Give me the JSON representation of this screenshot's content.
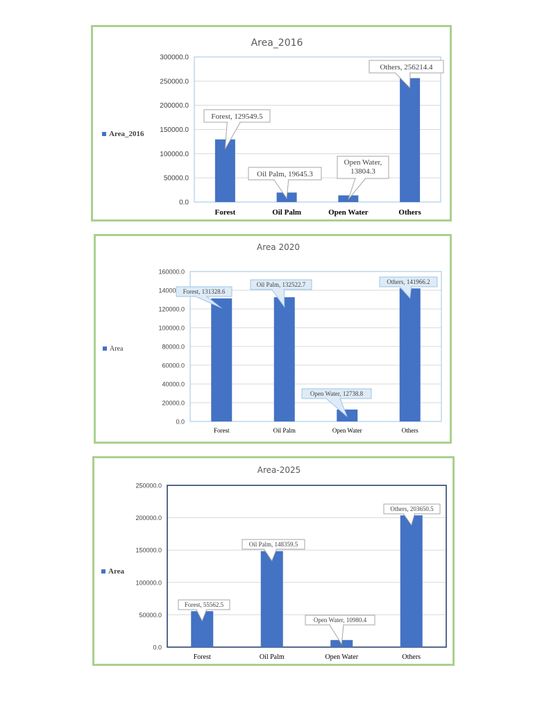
{
  "colors": {
    "bar": "#4472c4",
    "panel_border": "#a9d18e",
    "grid": "#d9d9d9"
  },
  "chart_data": [
    {
      "type": "bar",
      "title": "Area_2016",
      "legend": "Area_2016",
      "legend_position": "left",
      "categories": [
        "Forest",
        "Oil Palm",
        "Open Water",
        "Others"
      ],
      "values": [
        129549.5,
        19645.3,
        13804.3,
        256214.4
      ],
      "data_labels": [
        "Forest, 129549.5",
        "Oil Palm, 19645.3",
        "Open Water,",
        "Others, 256214.4"
      ],
      "data_labels_line2": [
        "",
        "",
        "13804.3",
        ""
      ],
      "yticks": [
        "0.0",
        "50000.0",
        "100000.0",
        "150000.0",
        "200000.0",
        "250000.0",
        "300000.0"
      ],
      "ylim": [
        0,
        300000
      ],
      "grid": true
    },
    {
      "type": "bar",
      "title": "Area 2020",
      "legend": "Area",
      "legend_position": "left",
      "categories": [
        "Forest",
        "Oil Palm",
        "Open Water",
        "Others"
      ],
      "values": [
        131328.6,
        132522.7,
        12738.8,
        141966.2
      ],
      "data_labels": [
        "Forest, 131328.6",
        "Oil Palm, 132522.7",
        "Open Water, 12738.8",
        "Others, 141966.2"
      ],
      "data_labels_line2": [
        "",
        "",
        "",
        ""
      ],
      "yticks": [
        "0.0",
        "20000.0",
        "40000.0",
        "60000.0",
        "80000.0",
        "100000.0",
        "120000.0",
        "140000.0",
        "160000.0"
      ],
      "ylim": [
        0,
        160000
      ],
      "grid": true
    },
    {
      "type": "bar",
      "title": "Area-2025",
      "legend": "Area",
      "legend_position": "left",
      "categories": [
        "Forest",
        "Oil Palm",
        "Open Water",
        "Others"
      ],
      "values": [
        55562.5,
        148359.5,
        10980.4,
        203650.5
      ],
      "data_labels": [
        "Forest, 55562.5",
        "Oil Palm, 148359.5",
        "Open Water, 10980.4",
        "Others, 203650.5"
      ],
      "data_labels_line2": [
        "",
        "",
        "",
        ""
      ],
      "yticks": [
        "0.0",
        "50000.0",
        "100000.0",
        "150000.0",
        "200000.0",
        "250000.0"
      ],
      "ylim": [
        0,
        250000
      ],
      "grid": true
    }
  ]
}
